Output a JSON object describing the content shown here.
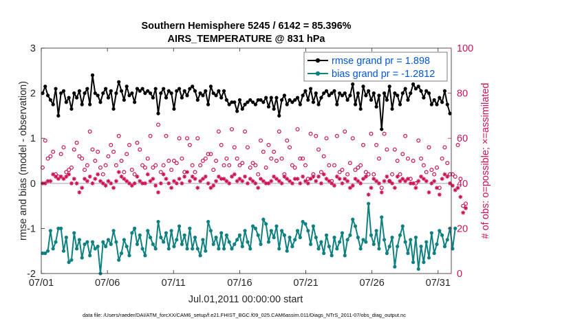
{
  "chart_data": {
    "type": "line",
    "title": [
      "Southern Hemisphere 5245 / 6142 = 85.396%",
      "AIRS_TEMPERATURE @ 831 hPa"
    ],
    "xlabel": "Jul.01,2011 00:00:00 start",
    "ylabel": "rmse and bias (model - observation)",
    "ylabel_right": "# of obs: o=possible; ×=assimilated",
    "footer": "data file: /Users/raeder/DAI/ATM_forcXX/CAM6_setup/f.e21.FHIST_BGC.f09_025.CAM6assim.011/Diags_NTrS_2011-07/obs_diag_output.nc",
    "x_range": [
      "07/01",
      "08/01"
    ],
    "x_ticks": [
      "07/01",
      "07/06",
      "07/11",
      "07/16",
      "07/21",
      "07/26",
      "07/31"
    ],
    "ylim": [
      -2,
      3
    ],
    "y_ticks": [
      "-2",
      "-1",
      "0",
      "1",
      "2",
      "3"
    ],
    "ylim_right": [
      0,
      100
    ],
    "y_ticks_right": [
      "0",
      "20",
      "40",
      "60",
      "80",
      "100"
    ],
    "grid": false,
    "legend_position": "top-right",
    "colors": {
      "rmse": "#000000",
      "bias": "#0e8080",
      "obs": "#cc1155",
      "zero_line": "#bbbbbb"
    },
    "series": [
      {
        "name": "rmse grand pr = 1.898",
        "axis": "left",
        "marker": "dot",
        "values": [
          2.0,
          2.15,
          1.95,
          1.85,
          1.75,
          2.1,
          1.5,
          2.0,
          2.05,
          1.8,
          1.9,
          1.65,
          2.0,
          1.9,
          2.05,
          1.75,
          2.0,
          2.1,
          1.75,
          2.4,
          2.0,
          1.95,
          1.8,
          2.0,
          2.1,
          1.9,
          2.05,
          1.65,
          2.0,
          2.25,
          2.05,
          1.85,
          2.15,
          1.95,
          2.0,
          1.8,
          2.1,
          2.05,
          2.1,
          2.0,
          2.05,
          2.0,
          1.9,
          2.1,
          1.55,
          2.0,
          2.1,
          1.9,
          2.05,
          2.0,
          1.65,
          2.05,
          2.1,
          1.9,
          2.05,
          1.95,
          2.1,
          2.15,
          2.05,
          1.85,
          2.0,
          1.95,
          2.05,
          1.75,
          2.15,
          2.0,
          1.95,
          2.05,
          1.9,
          2.05,
          1.85,
          1.75,
          1.8,
          1.8,
          1.6,
          1.85,
          1.65,
          1.75,
          1.8,
          1.85,
          1.8,
          1.75,
          1.85,
          1.85,
          1.8,
          1.9,
          1.7,
          1.9,
          1.65,
          1.9,
          1.5,
          1.85,
          1.95,
          1.75,
          1.85,
          1.8,
          1.85,
          1.9,
          1.75,
          1.95,
          2.05,
          1.85,
          2.1,
          1.8,
          2.0,
          1.75,
          1.9,
          2.0,
          2.05,
          1.95,
          2.0,
          2.05,
          1.75,
          2.0,
          1.95,
          2.0,
          1.85,
          1.95,
          2.2,
          1.75,
          2.0,
          1.65,
          2.15,
          1.95,
          2.05,
          1.85,
          2.0,
          1.7,
          1.95,
          1.2,
          2.0,
          1.85,
          2.15,
          1.65,
          2.0,
          1.95,
          1.75,
          2.0,
          2.1,
          1.85,
          2.0,
          2.2,
          2.1,
          2.15,
          2.05,
          1.9,
          2.05,
          2.0,
          1.75,
          1.85,
          1.75,
          1.9,
          1.8,
          2.05,
          1.75,
          1.55
        ]
      },
      {
        "name": "bias grand pr = -1.2812",
        "axis": "left",
        "marker": "dot",
        "values": [
          -1.55,
          -1.55,
          -1.5,
          -1.05,
          -1.45,
          -1.3,
          -1.0,
          -1.0,
          -1.5,
          -1.2,
          -1.75,
          -1.7,
          -1.1,
          -1.45,
          -1.25,
          -1.65,
          -1.35,
          -1.3,
          -1.6,
          -1.3,
          -1.45,
          -1.4,
          -2.0,
          -1.3,
          -1.4,
          -1.25,
          -1.35,
          -1.05,
          -1.3,
          -1.7,
          -1.55,
          -1.25,
          -1.4,
          -1.6,
          -1.1,
          -1.0,
          -1.35,
          -1.15,
          -1.45,
          -1.6,
          -1.05,
          -1.2,
          -1.35,
          -1.45,
          -0.85,
          -1.2,
          -1.3,
          -1.1,
          -1.45,
          -1.05,
          -1.4,
          -1.25,
          -0.95,
          -1.35,
          -1.15,
          -1.45,
          -1.0,
          -1.45,
          -1.2,
          -1.45,
          -1.6,
          -1.25,
          -1.5,
          -0.85,
          -1.05,
          -1.35,
          -1.2,
          -1.45,
          -1.1,
          -1.45,
          -1.15,
          -1.3,
          -1.45,
          -1.35,
          -1.25,
          -1.15,
          -1.4,
          -1.05,
          -1.3,
          -1.45,
          -0.95,
          -1.0,
          -1.15,
          -1.35,
          -0.8,
          -0.9,
          -1.3,
          -1.05,
          -1.2,
          -0.95,
          -1.45,
          -1.05,
          -1.15,
          -1.5,
          -1.2,
          -1.4,
          -1.25,
          -1.05,
          -1.2,
          -0.85,
          -0.9,
          -1.05,
          -1.35,
          -0.95,
          -1.2,
          -1.45,
          -1.3,
          -1.55,
          -1.15,
          -1.4,
          -1.6,
          -1.2,
          -1.45,
          -1.3,
          -1.1,
          -1.6,
          -1.25,
          -1.15,
          -0.8,
          -0.95,
          -1.2,
          -1.45,
          -1.25,
          -1.3,
          -0.45,
          -1.15,
          -1.35,
          -1.05,
          -1.45,
          -0.75,
          -1.25,
          -1.55,
          -1.4,
          -1.2,
          -1.85,
          -1.4,
          -1.15,
          -0.95,
          -1.3,
          -1.55,
          -1.25,
          -1.75,
          -1.2,
          -1.9,
          -1.4,
          -1.75,
          -1.3,
          -1.65,
          -1.1,
          -1.55,
          -1.35,
          -1.05,
          -1.15,
          -1.4,
          -1.25,
          -1.0,
          -1.45,
          -1.0
        ]
      },
      {
        "name": "possible",
        "axis": "right",
        "marker": "circle",
        "values": [
          47,
          59,
          51,
          52,
          54,
          44,
          43,
          53,
          56,
          45,
          46,
          47,
          55,
          58,
          52,
          51,
          46,
          48,
          63,
          55,
          50,
          54,
          47,
          44,
          48,
          52,
          57,
          54,
          48,
          61,
          50,
          45,
          53,
          57,
          46,
          44,
          58,
          55,
          48,
          47,
          51,
          61,
          47,
          48,
          66,
          45,
          48,
          61,
          50,
          46,
          50,
          49,
          60,
          51,
          45,
          60,
          57,
          48,
          45,
          60,
          48,
          50,
          51,
          53,
          53,
          46,
          50,
          63,
          57,
          48,
          51,
          48,
          64,
          56,
          51,
          48,
          49,
          63,
          56,
          47,
          49,
          48,
          44,
          59,
          54,
          47,
          57,
          51,
          54,
          50,
          63,
          51,
          44,
          59,
          56,
          48,
          47,
          64,
          51,
          51,
          48,
          42,
          62,
          44,
          61,
          55,
          45,
          52,
          60,
          48,
          41,
          48,
          61,
          45,
          46,
          63,
          44,
          49,
          60,
          46,
          47,
          48,
          57,
          45,
          44,
          62,
          44,
          57,
          51,
          38,
          62,
          55,
          41,
          44,
          55,
          50,
          44,
          53,
          61,
          51,
          42,
          50,
          40,
          59,
          51,
          48,
          45,
          56,
          46,
          44,
          47,
          38,
          51,
          56,
          49,
          44,
          44,
          43,
          57,
          42,
          30,
          31
        ]
      },
      {
        "name": "assimilated",
        "axis": "right",
        "marker": "star",
        "values": [
          40,
          40,
          41,
          41,
          44,
          43,
          42,
          43,
          42,
          43,
          44,
          40,
          42,
          40,
          36,
          38,
          42,
          41,
          43,
          40,
          42,
          44,
          41,
          40,
          39,
          41,
          40,
          38,
          41,
          45,
          43,
          42,
          41,
          40,
          39,
          40,
          43,
          41,
          40,
          40,
          44,
          41,
          42,
          39,
          36,
          40,
          44,
          42,
          40,
          38,
          41,
          40,
          42,
          40,
          43,
          45,
          41,
          43,
          42,
          38,
          41,
          42,
          43,
          40,
          38,
          39,
          41,
          43,
          42,
          42,
          41,
          40,
          43,
          44,
          41,
          42,
          41,
          43,
          40,
          42,
          41,
          40,
          38,
          42,
          41,
          40,
          40,
          41,
          43,
          42,
          41,
          40,
          43,
          42,
          41,
          40,
          42,
          42,
          40,
          43,
          41,
          40,
          42,
          43,
          41,
          43,
          40,
          44,
          42,
          41,
          40,
          39,
          43,
          42,
          40,
          42,
          41,
          38,
          39,
          42,
          41,
          40,
          42,
          43,
          35,
          38,
          42,
          41,
          40,
          36,
          41,
          43,
          41,
          40,
          38,
          43,
          41,
          42,
          41,
          42,
          40,
          40,
          38,
          41,
          43,
          42,
          41,
          36,
          40,
          41,
          38,
          35,
          42,
          44,
          43,
          40,
          39,
          37,
          38,
          34,
          27,
          29
        ]
      }
    ]
  }
}
